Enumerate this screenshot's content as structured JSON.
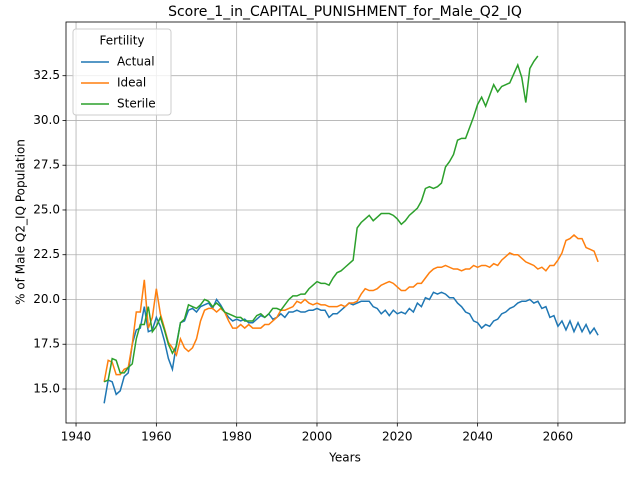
{
  "chart_data": {
    "type": "line",
    "title": "Score_1_in_CAPITAL_PUNISHMENT_for_Male_Q2_IQ",
    "x_label": "Years",
    "y_label": "% of Male Q2_IQ Population",
    "legend_title": "Fertility",
    "legend": "upper left",
    "grid": true,
    "xlim": [
      1937.5,
      2076.7
    ],
    "xticks": [
      1940,
      1960,
      1980,
      2000,
      2020,
      2040,
      2060
    ],
    "ylim": [
      13.1,
      35.5
    ],
    "yticks": [
      {
        "value": 15,
        "label": "15.0"
      },
      {
        "value": 17.5,
        "label": "17.5"
      },
      {
        "value": 20,
        "label": "20.0"
      },
      {
        "value": 22.5,
        "label": "22.5"
      },
      {
        "value": 25,
        "label": "25.0"
      },
      {
        "value": 27.5,
        "label": "27.5"
      },
      {
        "value": 30,
        "label": "30.0"
      },
      {
        "value": 32.5,
        "label": "32.5"
      }
    ],
    "x": [
      1947,
      1948,
      1949,
      1950,
      1951,
      1952,
      1953,
      1954,
      1955,
      1956,
      1957,
      1958,
      1959,
      1960,
      1961,
      1962,
      1963,
      1964,
      1965,
      1966,
      1967,
      1968,
      1969,
      1970,
      1971,
      1972,
      1973,
      1974,
      1975,
      1976,
      1977,
      1978,
      1979,
      1980,
      1981,
      1982,
      1983,
      1984,
      1985,
      1986,
      1987,
      1988,
      1989,
      1990,
      1991,
      1992,
      1993,
      1994,
      1995,
      1996,
      1997,
      1998,
      1999,
      2000,
      2001,
      2002,
      2003,
      2004,
      2005,
      2006,
      2007,
      2008,
      2009,
      2010,
      2011,
      2012,
      2013,
      2014,
      2015,
      2016,
      2017,
      2018,
      2019,
      2020,
      2021,
      2022,
      2023,
      2024,
      2025,
      2026,
      2027,
      2028,
      2029,
      2030,
      2031,
      2032,
      2033,
      2034,
      2035,
      2036,
      2037,
      2038,
      2039,
      2040,
      2041,
      2042,
      2043,
      2044,
      2045,
      2046,
      2047,
      2048,
      2049,
      2050,
      2051,
      2052,
      2053,
      2054,
      2055,
      2056,
      2057,
      2058,
      2059,
      2060,
      2061,
      2062,
      2063,
      2064,
      2065,
      2066,
      2067,
      2068,
      2069,
      2070
    ],
    "series": [
      {
        "name": "Actual",
        "color": "#1f77b4",
        "values": [
          14.2,
          15.5,
          15.4,
          14.7,
          14.9,
          15.7,
          15.9,
          17.5,
          18.3,
          18.4,
          19.6,
          18.2,
          18.3,
          19.0,
          18.5,
          17.7,
          16.7,
          16.1,
          17.5,
          18.7,
          18.8,
          19.4,
          19.5,
          19.3,
          19.6,
          19.7,
          19.8,
          19.5,
          20.0,
          19.7,
          19.3,
          19.0,
          18.8,
          18.9,
          18.8,
          18.9,
          18.7,
          18.7,
          18.9,
          19.1,
          19.0,
          19.2,
          18.9,
          19.0,
          19.2,
          19.0,
          19.3,
          19.3,
          19.4,
          19.3,
          19.3,
          19.4,
          19.4,
          19.5,
          19.4,
          19.4,
          19.0,
          19.2,
          19.2,
          19.4,
          19.6,
          19.8,
          19.7,
          19.8,
          19.9,
          19.9,
          19.9,
          19.6,
          19.5,
          19.2,
          19.4,
          19.1,
          19.4,
          19.2,
          19.3,
          19.2,
          19.5,
          19.3,
          19.8,
          19.6,
          20.1,
          20.0,
          20.4,
          20.3,
          20.4,
          20.3,
          20.1,
          20.1,
          19.8,
          19.6,
          19.3,
          19.2,
          18.8,
          18.7,
          18.4,
          18.6,
          18.5,
          18.8,
          18.9,
          19.2,
          19.3,
          19.5,
          19.6,
          19.8,
          19.9,
          19.9,
          20.0,
          19.8,
          19.9,
          19.5,
          19.6,
          19.0,
          19.1,
          18.5,
          18.8,
          18.3,
          18.8,
          18.2,
          18.7,
          18.2,
          18.6,
          18.1,
          18.4,
          18.0
        ]
      },
      {
        "name": "Ideal",
        "color": "#ff7f0e",
        "values": [
          15.4,
          16.6,
          16.5,
          15.8,
          15.8,
          16.1,
          16.2,
          17.5,
          19.3,
          19.3,
          21.1,
          18.4,
          19.0,
          20.6,
          19.2,
          18.4,
          17.6,
          17.3,
          16.9,
          17.8,
          17.3,
          17.1,
          17.3,
          17.8,
          18.8,
          19.4,
          19.5,
          19.5,
          19.3,
          19.5,
          19.3,
          18.8,
          18.4,
          18.4,
          18.6,
          18.4,
          18.6,
          18.4,
          18.4,
          18.4,
          18.6,
          18.6,
          18.8,
          19.0,
          19.4,
          19.4,
          19.5,
          19.6,
          19.9,
          19.8,
          20.0,
          19.8,
          19.7,
          19.8,
          19.7,
          19.7,
          19.6,
          19.6,
          19.6,
          19.7,
          19.6,
          19.8,
          19.8,
          19.9,
          20.3,
          20.6,
          20.5,
          20.5,
          20.6,
          20.8,
          20.9,
          21.0,
          20.9,
          20.7,
          20.5,
          20.5,
          20.7,
          20.7,
          20.9,
          20.9,
          21.2,
          21.5,
          21.7,
          21.8,
          21.8,
          21.9,
          21.8,
          21.7,
          21.7,
          21.6,
          21.7,
          21.7,
          21.9,
          21.8,
          21.9,
          21.9,
          21.8,
          22.0,
          21.9,
          22.2,
          22.4,
          22.6,
          22.5,
          22.5,
          22.3,
          22.1,
          22.0,
          21.9,
          21.7,
          21.8,
          21.6,
          21.9,
          21.9,
          22.2,
          22.6,
          23.3,
          23.4,
          23.6,
          23.4,
          23.4,
          22.9,
          22.8,
          22.7,
          22.1
        ]
      },
      {
        "name": "Sterile",
        "color": "#2ca02c",
        "values": [
          15.4,
          15.5,
          16.7,
          16.6,
          15.9,
          15.9,
          16.2,
          16.4,
          17.8,
          18.6,
          18.6,
          19.6,
          18.2,
          18.5,
          19.0,
          18.3,
          17.5,
          17.0,
          17.4,
          18.7,
          18.9,
          19.7,
          19.6,
          19.5,
          19.7,
          20.0,
          19.9,
          19.6,
          19.8,
          19.6,
          19.3,
          19.2,
          19.1,
          19.0,
          19.0,
          18.8,
          18.8,
          18.8,
          19.1,
          19.2,
          19.0,
          19.2,
          19.5,
          19.5,
          19.4,
          19.7,
          20.0,
          20.2,
          20.2,
          20.3,
          20.3,
          20.6,
          20.8,
          21.0,
          20.9,
          20.9,
          20.8,
          21.2,
          21.5,
          21.6,
          21.8,
          22.0,
          22.2,
          24.0,
          24.3,
          24.5,
          24.7,
          24.4,
          24.6,
          24.8,
          24.8,
          24.8,
          24.7,
          24.5,
          24.2,
          24.4,
          24.7,
          24.9,
          25.1,
          25.5,
          26.2,
          26.3,
          26.2,
          26.3,
          26.5,
          27.4,
          27.7,
          28.1,
          28.9,
          29.0,
          29.0,
          29.6,
          30.2,
          30.9,
          31.3,
          30.8,
          31.4,
          32.0,
          31.6,
          31.9,
          32.0,
          32.1,
          32.6,
          33.1,
          32.4,
          31.0,
          32.9,
          33.3,
          33.6,
          null,
          null,
          null,
          null,
          null,
          null,
          null,
          null,
          null,
          null,
          null,
          null,
          null,
          null,
          null
        ]
      }
    ]
  }
}
